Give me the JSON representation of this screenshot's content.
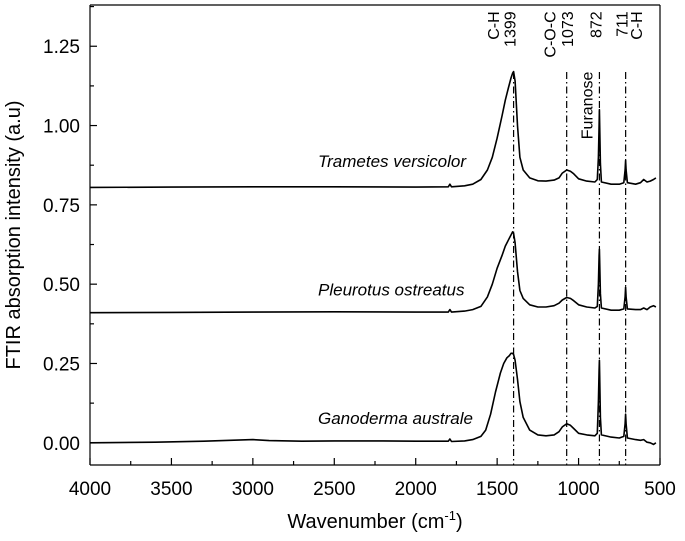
{
  "chart_data": {
    "type": "line",
    "title": "",
    "xlabel": "Wavenumber (cm",
    "xlabel_sup": "-1",
    "xlabel_end": ")",
    "ylabel": "FTIR absorption intensity (a.u)",
    "xlim": [
      4000,
      500
    ],
    "ylim": [
      -0.07,
      1.38
    ],
    "xticks": [
      4000,
      3500,
      3000,
      2500,
      2000,
      1500,
      1000,
      500
    ],
    "xtick_labels": [
      "4000",
      "3500",
      "3000",
      "2500",
      "2000",
      "1500",
      "1000",
      "500"
    ],
    "yticks": [
      0.0,
      0.25,
      0.5,
      0.75,
      1.0,
      1.25
    ],
    "ytick_labels": [
      "0.00",
      "0.25",
      "0.50",
      "0.75",
      "1.00",
      "1.25"
    ],
    "series": [
      {
        "name": "Trametes versicolor",
        "baseline": 0.805,
        "label_at": {
          "x": 2600,
          "y": 0.87
        },
        "points": [
          [
            4000,
            0.805
          ],
          [
            3500,
            0.806
          ],
          [
            3000,
            0.807
          ],
          [
            2500,
            0.807
          ],
          [
            2000,
            0.806
          ],
          [
            1800,
            0.807
          ],
          [
            1790,
            0.815
          ],
          [
            1780,
            0.807
          ],
          [
            1700,
            0.81
          ],
          [
            1650,
            0.815
          ],
          [
            1600,
            0.83
          ],
          [
            1560,
            0.86
          ],
          [
            1530,
            0.9
          ],
          [
            1500,
            0.96
          ],
          [
            1470,
            1.03
          ],
          [
            1450,
            1.08
          ],
          [
            1430,
            1.12
          ],
          [
            1415,
            1.15
          ],
          [
            1405,
            1.165
          ],
          [
            1399,
            1.17
          ],
          [
            1390,
            1.14
          ],
          [
            1375,
            1.0
          ],
          [
            1360,
            0.9
          ],
          [
            1340,
            0.86
          ],
          [
            1300,
            0.835
          ],
          [
            1250,
            0.826
          ],
          [
            1200,
            0.825
          ],
          [
            1150,
            0.828
          ],
          [
            1120,
            0.835
          ],
          [
            1100,
            0.85
          ],
          [
            1073,
            0.86
          ],
          [
            1050,
            0.856
          ],
          [
            1030,
            0.848
          ],
          [
            1000,
            0.832
          ],
          [
            950,
            0.825
          ],
          [
            900,
            0.822
          ],
          [
            885,
            0.83
          ],
          [
            878,
            0.9
          ],
          [
            874,
            1.0
          ],
          [
            872,
            1.05
          ],
          [
            870,
            1.0
          ],
          [
            866,
            0.88
          ],
          [
            860,
            0.822
          ],
          [
            800,
            0.815
          ],
          [
            750,
            0.815
          ],
          [
            722,
            0.82
          ],
          [
            714,
            0.86
          ],
          [
            711,
            0.89
          ],
          [
            708,
            0.86
          ],
          [
            700,
            0.82
          ],
          [
            650,
            0.815
          ],
          [
            620,
            0.82
          ],
          [
            600,
            0.83
          ],
          [
            580,
            0.822
          ],
          [
            560,
            0.825
          ],
          [
            540,
            0.83
          ],
          [
            525,
            0.835
          ]
        ]
      },
      {
        "name": "Pleurotus ostreatus",
        "baseline": 0.41,
        "label_at": {
          "x": 2600,
          "y": 0.465
        },
        "points": [
          [
            4000,
            0.41
          ],
          [
            3500,
            0.411
          ],
          [
            3000,
            0.412
          ],
          [
            2500,
            0.413
          ],
          [
            2000,
            0.412
          ],
          [
            1800,
            0.412
          ],
          [
            1790,
            0.42
          ],
          [
            1780,
            0.412
          ],
          [
            1700,
            0.415
          ],
          [
            1650,
            0.42
          ],
          [
            1600,
            0.43
          ],
          [
            1560,
            0.46
          ],
          [
            1530,
            0.5
          ],
          [
            1500,
            0.55
          ],
          [
            1470,
            0.59
          ],
          [
            1450,
            0.62
          ],
          [
            1430,
            0.64
          ],
          [
            1415,
            0.655
          ],
          [
            1405,
            0.665
          ],
          [
            1399,
            0.66
          ],
          [
            1390,
            0.63
          ],
          [
            1375,
            0.54
          ],
          [
            1360,
            0.48
          ],
          [
            1340,
            0.455
          ],
          [
            1300,
            0.435
          ],
          [
            1250,
            0.428
          ],
          [
            1200,
            0.428
          ],
          [
            1150,
            0.432
          ],
          [
            1120,
            0.44
          ],
          [
            1100,
            0.45
          ],
          [
            1073,
            0.458
          ],
          [
            1050,
            0.455
          ],
          [
            1030,
            0.448
          ],
          [
            1000,
            0.435
          ],
          [
            950,
            0.428
          ],
          [
            900,
            0.425
          ],
          [
            885,
            0.43
          ],
          [
            878,
            0.5
          ],
          [
            874,
            0.59
          ],
          [
            872,
            0.61
          ],
          [
            870,
            0.57
          ],
          [
            866,
            0.47
          ],
          [
            860,
            0.425
          ],
          [
            800,
            0.418
          ],
          [
            750,
            0.418
          ],
          [
            722,
            0.422
          ],
          [
            714,
            0.46
          ],
          [
            711,
            0.49
          ],
          [
            708,
            0.46
          ],
          [
            700,
            0.422
          ],
          [
            650,
            0.42
          ],
          [
            620,
            0.42
          ],
          [
            600,
            0.425
          ],
          [
            580,
            0.42
          ],
          [
            560,
            0.428
          ],
          [
            540,
            0.432
          ],
          [
            525,
            0.428
          ]
        ]
      },
      {
        "name": "Ganoderma australe",
        "baseline": 0.0,
        "label_at": {
          "x": 2600,
          "y": 0.06
        },
        "points": [
          [
            4000,
            0.0
          ],
          [
            3600,
            0.002
          ],
          [
            3300,
            0.005
          ],
          [
            3000,
            0.01
          ],
          [
            2900,
            0.007
          ],
          [
            2700,
            0.005
          ],
          [
            2500,
            0.006
          ],
          [
            2200,
            0.006
          ],
          [
            2000,
            0.005
          ],
          [
            1800,
            0.005
          ],
          [
            1790,
            0.012
          ],
          [
            1780,
            0.004
          ],
          [
            1700,
            0.006
          ],
          [
            1650,
            0.01
          ],
          [
            1600,
            0.02
          ],
          [
            1570,
            0.04
          ],
          [
            1540,
            0.09
          ],
          [
            1510,
            0.16
          ],
          [
            1480,
            0.22
          ],
          [
            1460,
            0.25
          ],
          [
            1440,
            0.268
          ],
          [
            1425,
            0.275
          ],
          [
            1415,
            0.282
          ],
          [
            1405,
            0.282
          ],
          [
            1399,
            0.278
          ],
          [
            1390,
            0.26
          ],
          [
            1375,
            0.2
          ],
          [
            1360,
            0.13
          ],
          [
            1340,
            0.08
          ],
          [
            1300,
            0.04
          ],
          [
            1250,
            0.025
          ],
          [
            1200,
            0.022
          ],
          [
            1150,
            0.025
          ],
          [
            1120,
            0.035
          ],
          [
            1100,
            0.05
          ],
          [
            1073,
            0.06
          ],
          [
            1050,
            0.055
          ],
          [
            1030,
            0.045
          ],
          [
            1000,
            0.03
          ],
          [
            950,
            0.025
          ],
          [
            900,
            0.022
          ],
          [
            885,
            0.03
          ],
          [
            878,
            0.13
          ],
          [
            874,
            0.23
          ],
          [
            872,
            0.26
          ],
          [
            870,
            0.21
          ],
          [
            866,
            0.08
          ],
          [
            860,
            0.025
          ],
          [
            800,
            0.018
          ],
          [
            750,
            0.015
          ],
          [
            722,
            0.02
          ],
          [
            714,
            0.06
          ],
          [
            711,
            0.09
          ],
          [
            708,
            0.06
          ],
          [
            700,
            0.015
          ],
          [
            650,
            0.01
          ],
          [
            620,
            0.008
          ],
          [
            600,
            0.01
          ],
          [
            580,
            0.002
          ],
          [
            560,
            0.0
          ],
          [
            540,
            -0.005
          ],
          [
            525,
            0.0
          ]
        ]
      }
    ],
    "reference_lines": [
      {
        "x": 1399,
        "label": "1399",
        "group": "C-H"
      },
      {
        "x": 1073,
        "label": "1073",
        "group": "C-O-C"
      },
      {
        "x": 872,
        "label": "872",
        "group": "Furanose"
      },
      {
        "x": 711,
        "label": "711",
        "group": "C-H"
      }
    ],
    "annotations": [
      {
        "text": "C-H",
        "x": 1490,
        "y": 1.36
      },
      {
        "text": "1399",
        "x": 1388,
        "y": 1.36
      },
      {
        "text": "C-O-C",
        "x": 1142,
        "y": 1.36
      },
      {
        "text": "1073",
        "x": 1035,
        "y": 1.36
      },
      {
        "text": "Furanose",
        "x": 915,
        "y": 1.17
      },
      {
        "text": "872",
        "x": 860,
        "y": 1.36
      },
      {
        "text": "711",
        "x": 700,
        "y": 1.36
      },
      {
        "text": "C-H",
        "x": 612,
        "y": 1.36
      }
    ]
  }
}
